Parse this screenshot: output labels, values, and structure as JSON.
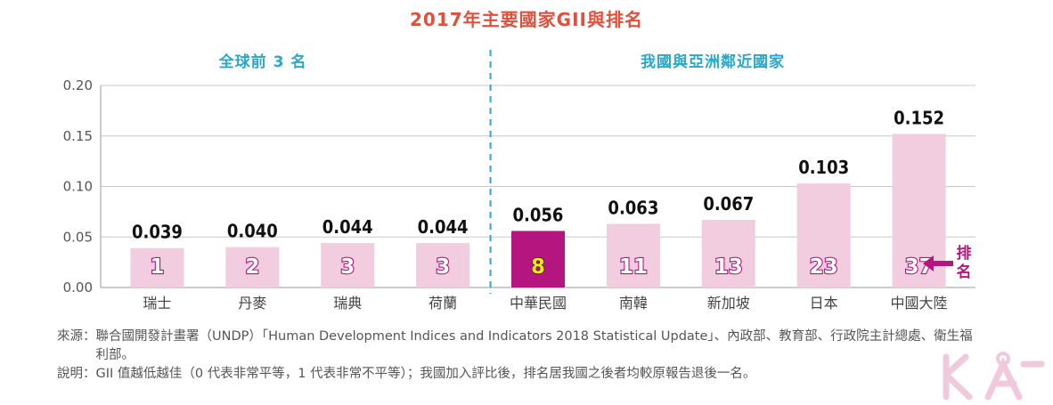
{
  "title": "2017年主要國家GII與排名",
  "groups": [
    {
      "label": "全球前 3 名"
    },
    {
      "label": "我國與亞洲鄰近國家"
    }
  ],
  "rank_label": "排名",
  "colors": {
    "bar": "#f2cde0",
    "highlight": "#b5157e",
    "rank_text": "#ffffff",
    "highlight_rank_text": "#f8e81c",
    "rank_outline": "#b5157e",
    "divider": "#2aa7c9",
    "title": "#e0503c",
    "arrow": "#b5157e"
  },
  "chart_data": {
    "type": "bar",
    "title": "2017年主要國家GII與排名",
    "categories": [
      "瑞士",
      "丹麥",
      "瑞典",
      "荷蘭",
      "中華民國",
      "南韓",
      "新加坡",
      "日本",
      "中國大陸"
    ],
    "values": [
      0.039,
      0.04,
      0.044,
      0.044,
      0.056,
      0.063,
      0.067,
      0.103,
      0.152
    ],
    "value_labels": [
      "0.039",
      "0.040",
      "0.044",
      "0.044",
      "0.056",
      "0.063",
      "0.067",
      "0.103",
      "0.152"
    ],
    "ranks": [
      "1",
      "2",
      "3",
      "3",
      "8",
      "11",
      "13",
      "23",
      "37"
    ],
    "highlight_index": 4,
    "ylim": [
      0,
      0.2
    ],
    "yticks": [
      "0.00",
      "0.05",
      "0.10",
      "0.15",
      "0.20"
    ],
    "ytick_values": [
      0,
      0.05,
      0.1,
      0.15,
      0.2
    ],
    "grid": true,
    "xlabel": "",
    "ylabel": ""
  },
  "notes": [
    {
      "key": "來源：",
      "text": "聯合國開發計畫署（UNDP）「Human Development Indices and Indicators 2018 Statistical Update」、內政部、教育部、行政院主計總處、衛生福利部。"
    },
    {
      "key": "說明：",
      "text": "GII 值越低越佳（0 代表非常平等，1 代表非常不平等）；我國加入評比後，排名居我國之後者均較原報告退後一名。"
    }
  ]
}
